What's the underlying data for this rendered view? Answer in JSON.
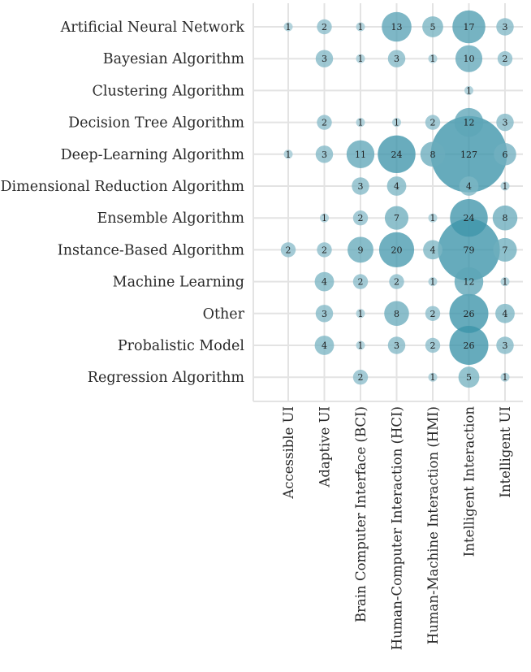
{
  "chart_data": {
    "type": "bubble-matrix",
    "title": "",
    "xlabel": "",
    "ylabel": "",
    "grid": true,
    "colors": {
      "small": "#9fc8d3",
      "large": "#3b93a9",
      "grid": "#e3e3e3"
    },
    "rows": [
      "Artificial Neural Network",
      "Bayesian Algorithm",
      "Clustering Algorithm",
      "Decision Tree Algorithm",
      "Deep-Learning Algorithm",
      "Dimensional Reduction Algorithm",
      "Ensemble Algorithm",
      "Instance-Based Algorithm",
      "Machine Learning",
      "Other",
      "Probalistic Model",
      "Regression Algorithm"
    ],
    "columns": [
      "Accessible UI",
      "Adaptive UI",
      "Brain Computer Interface (BCI)",
      "Human-Computer Interaction (HCI)",
      "Human-Machine Interaction (HMI)",
      "Intelligent Interaction",
      "Intelligent UI"
    ],
    "values": [
      [
        1,
        2,
        1,
        13,
        5,
        17,
        3
      ],
      [
        null,
        3,
        1,
        3,
        1,
        10,
        2
      ],
      [
        null,
        null,
        null,
        null,
        null,
        1,
        null
      ],
      [
        null,
        2,
        1,
        1,
        2,
        12,
        3
      ],
      [
        1,
        3,
        11,
        24,
        8,
        127,
        6
      ],
      [
        null,
        null,
        3,
        4,
        null,
        4,
        1
      ],
      [
        null,
        1,
        2,
        7,
        1,
        24,
        8
      ],
      [
        2,
        2,
        9,
        20,
        4,
        79,
        7
      ],
      [
        null,
        4,
        2,
        2,
        1,
        12,
        1
      ],
      [
        null,
        3,
        1,
        8,
        2,
        26,
        4
      ],
      [
        null,
        4,
        1,
        3,
        2,
        26,
        3
      ],
      [
        null,
        null,
        2,
        null,
        1,
        5,
        1
      ]
    ]
  }
}
